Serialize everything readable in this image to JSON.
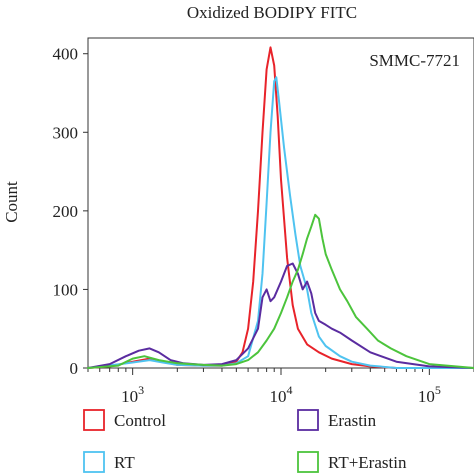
{
  "chart_data": {
    "type": "line",
    "title": "Oxidized BODIPY FITC",
    "annotation": "SMMC-7721",
    "ylabel": "Count",
    "xlabel": "",
    "xscale": "log",
    "xlim": [
      500,
      200000
    ],
    "ylim": [
      0,
      420
    ],
    "yticks": [
      0,
      100,
      200,
      300,
      400
    ],
    "ytick_labels": [
      "0",
      "100",
      "200",
      "300",
      "400"
    ],
    "xticks": [
      1000,
      10000,
      100000
    ],
    "xtick_labels": [
      {
        "base": "10",
        "exp": "3"
      },
      {
        "base": "10",
        "exp": "4"
      },
      {
        "base": "10",
        "exp": "5"
      }
    ],
    "grid": false,
    "legend_position": "bottom",
    "series": [
      {
        "name": "Control",
        "color": "#e8232a",
        "points": [
          [
            500,
            0
          ],
          [
            700,
            2
          ],
          [
            1000,
            8
          ],
          [
            1300,
            12
          ],
          [
            1600,
            8
          ],
          [
            2000,
            4
          ],
          [
            3000,
            3
          ],
          [
            4000,
            3
          ],
          [
            5000,
            8
          ],
          [
            5500,
            20
          ],
          [
            6000,
            50
          ],
          [
            6500,
            110
          ],
          [
            7000,
            200
          ],
          [
            7500,
            300
          ],
          [
            8000,
            380
          ],
          [
            8500,
            408
          ],
          [
            9000,
            385
          ],
          [
            9500,
            320
          ],
          [
            10000,
            240
          ],
          [
            11000,
            140
          ],
          [
            12000,
            80
          ],
          [
            13000,
            50
          ],
          [
            15000,
            30
          ],
          [
            18000,
            20
          ],
          [
            22000,
            12
          ],
          [
            30000,
            5
          ],
          [
            40000,
            2
          ],
          [
            60000,
            0
          ],
          [
            200000,
            0
          ]
        ]
      },
      {
        "name": "RT",
        "color": "#4fc3f0",
        "points": [
          [
            500,
            0
          ],
          [
            1000,
            7
          ],
          [
            1300,
            10
          ],
          [
            1600,
            7
          ],
          [
            2000,
            4
          ],
          [
            3000,
            3
          ],
          [
            4000,
            3
          ],
          [
            5000,
            6
          ],
          [
            6000,
            15
          ],
          [
            7000,
            60
          ],
          [
            7500,
            120
          ],
          [
            8000,
            210
          ],
          [
            8500,
            300
          ],
          [
            9000,
            365
          ],
          [
            9300,
            370
          ],
          [
            9700,
            340
          ],
          [
            10500,
            280
          ],
          [
            11500,
            220
          ],
          [
            12500,
            170
          ],
          [
            13500,
            130
          ],
          [
            15000,
            100
          ],
          [
            16000,
            70
          ],
          [
            18000,
            40
          ],
          [
            20000,
            28
          ],
          [
            25000,
            15
          ],
          [
            30000,
            8
          ],
          [
            40000,
            3
          ],
          [
            60000,
            0
          ],
          [
            200000,
            0
          ]
        ]
      },
      {
        "name": "Erastin",
        "color": "#5a2ca0",
        "points": [
          [
            500,
            0
          ],
          [
            700,
            5
          ],
          [
            900,
            15
          ],
          [
            1100,
            22
          ],
          [
            1300,
            25
          ],
          [
            1500,
            20
          ],
          [
            1800,
            10
          ],
          [
            2200,
            6
          ],
          [
            3000,
            4
          ],
          [
            4000,
            5
          ],
          [
            5000,
            10
          ],
          [
            6000,
            25
          ],
          [
            7000,
            50
          ],
          [
            7500,
            90
          ],
          [
            8000,
            100
          ],
          [
            8500,
            85
          ],
          [
            9000,
            90
          ],
          [
            10000,
            110
          ],
          [
            11000,
            130
          ],
          [
            12000,
            133
          ],
          [
            13000,
            120
          ],
          [
            14000,
            100
          ],
          [
            15000,
            110
          ],
          [
            16000,
            95
          ],
          [
            17000,
            70
          ],
          [
            18000,
            60
          ],
          [
            20000,
            55
          ],
          [
            22000,
            50
          ],
          [
            25000,
            45
          ],
          [
            30000,
            35
          ],
          [
            40000,
            20
          ],
          [
            60000,
            8
          ],
          [
            100000,
            2
          ],
          [
            200000,
            0
          ]
        ]
      },
      {
        "name": "RT+Erastin",
        "color": "#4cc43c",
        "points": [
          [
            500,
            0
          ],
          [
            800,
            3
          ],
          [
            1000,
            12
          ],
          [
            1200,
            15
          ],
          [
            1500,
            10
          ],
          [
            2000,
            6
          ],
          [
            3000,
            4
          ],
          [
            4000,
            3
          ],
          [
            5000,
            5
          ],
          [
            6000,
            10
          ],
          [
            7000,
            20
          ],
          [
            8000,
            35
          ],
          [
            9000,
            50
          ],
          [
            10000,
            70
          ],
          [
            11000,
            90
          ],
          [
            12000,
            110
          ],
          [
            13000,
            125
          ],
          [
            14000,
            145
          ],
          [
            15000,
            165
          ],
          [
            16000,
            180
          ],
          [
            17000,
            195
          ],
          [
            18000,
            190
          ],
          [
            19000,
            165
          ],
          [
            20000,
            145
          ],
          [
            22000,
            125
          ],
          [
            25000,
            100
          ],
          [
            28000,
            85
          ],
          [
            32000,
            65
          ],
          [
            38000,
            50
          ],
          [
            45000,
            35
          ],
          [
            55000,
            25
          ],
          [
            70000,
            15
          ],
          [
            100000,
            5
          ],
          [
            150000,
            2
          ],
          [
            200000,
            0
          ]
        ]
      }
    ]
  }
}
